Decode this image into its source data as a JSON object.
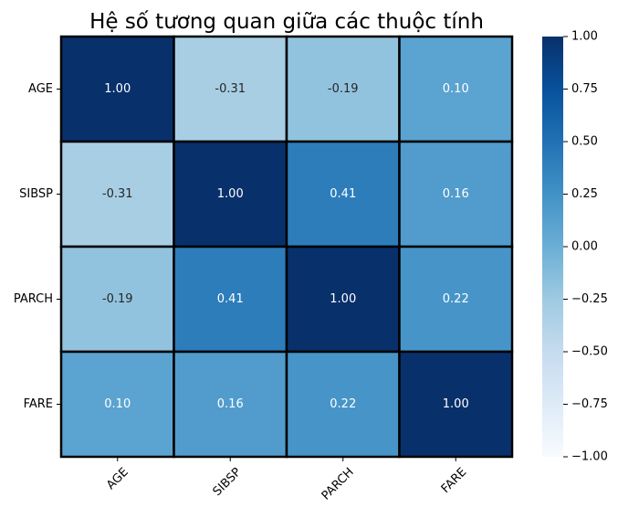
{
  "chart_data": {
    "type": "heatmap",
    "title": "Hệ số tương quan giữa các thuộc tính",
    "x_labels": [
      "AGE",
      "SIBSP",
      "PARCH",
      "FARE"
    ],
    "y_labels": [
      "AGE",
      "SIBSP",
      "PARCH",
      "FARE"
    ],
    "values": [
      [
        1.0,
        -0.31,
        -0.19,
        0.1
      ],
      [
        -0.31,
        1.0,
        0.41,
        0.16
      ],
      [
        -0.19,
        0.41,
        1.0,
        0.22
      ],
      [
        0.1,
        0.16,
        0.22,
        1.0
      ]
    ],
    "cell_labels": [
      [
        "1.00",
        "-0.31",
        "-0.19",
        "0.10"
      ],
      [
        "-0.31",
        "1.00",
        "0.41",
        "0.16"
      ],
      [
        "-0.19",
        "0.41",
        "1.00",
        "0.22"
      ],
      [
        "0.10",
        "0.16",
        "0.22",
        "1.00"
      ]
    ],
    "color_range": [
      -1.0,
      1.0
    ],
    "colormap": "Blues",
    "colorbar_ticks": [
      "1.00",
      "0.75",
      "0.50",
      "0.25",
      "0.00",
      "−0.25",
      "−0.50",
      "−0.75",
      "−1.00"
    ],
    "colorbar_tick_values": [
      1.0,
      0.75,
      0.5,
      0.25,
      0.0,
      -0.25,
      -0.5,
      -0.75,
      -1.0
    ],
    "cell_border_color": "#000000"
  }
}
